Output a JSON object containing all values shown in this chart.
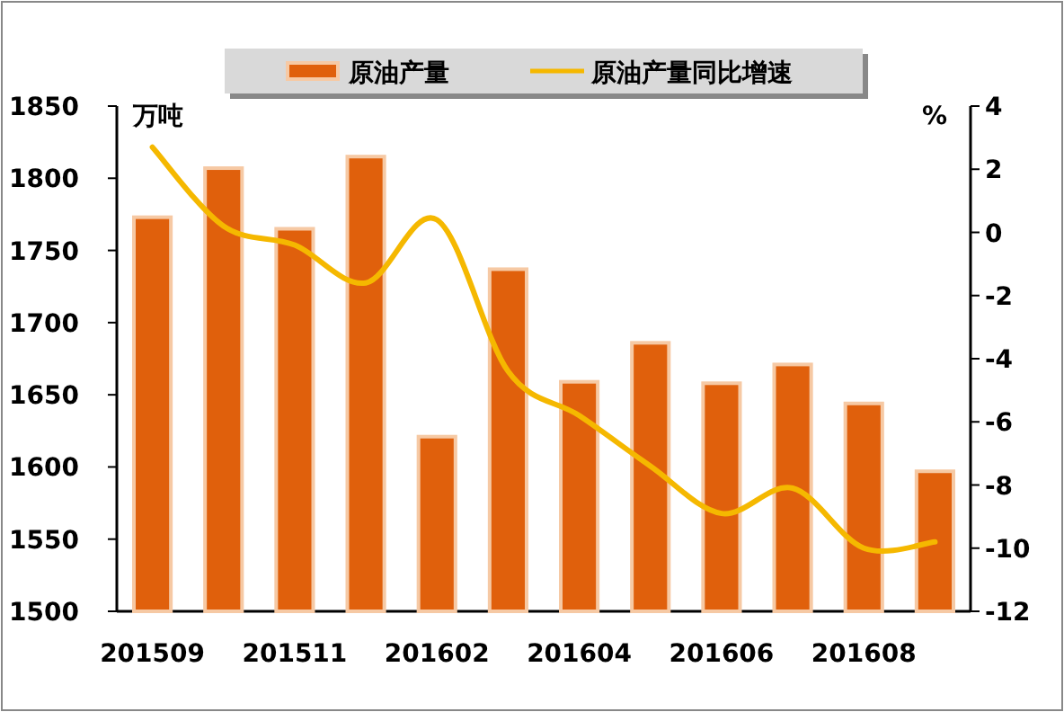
{
  "chart_data": {
    "type": "bar",
    "categories": [
      "201509",
      null,
      "201511",
      null,
      "201602",
      null,
      "201604",
      null,
      "201606",
      null,
      "201608",
      null
    ],
    "series": [
      {
        "name": "原油产量",
        "color": "#e0600c",
        "values": [
          1773,
          1807,
          1765,
          1815,
          1621,
          1737,
          1659,
          1686,
          1658,
          1671,
          1644,
          1597
        ]
      },
      {
        "name": "原油产量同比增速",
        "type": "line",
        "axis": "y2",
        "color": "#f5b800",
        "values": [
          2.7,
          0.2,
          -0.4,
          -1.6,
          0.4,
          -4.4,
          -5.8,
          -7.4,
          -8.9,
          -8.1,
          -10.0,
          -9.8
        ]
      }
    ],
    "ylabel": "万吨",
    "y2label": "%",
    "ylim": [
      1500,
      1850
    ],
    "yticks": [
      1500,
      1550,
      1600,
      1650,
      1700,
      1750,
      1800,
      1850
    ],
    "y2lim": [
      -12,
      4
    ],
    "y2ticks": [
      -12,
      -10,
      -8,
      -6,
      -4,
      -2,
      0,
      2,
      4
    ],
    "legend": "top",
    "grid": false
  }
}
